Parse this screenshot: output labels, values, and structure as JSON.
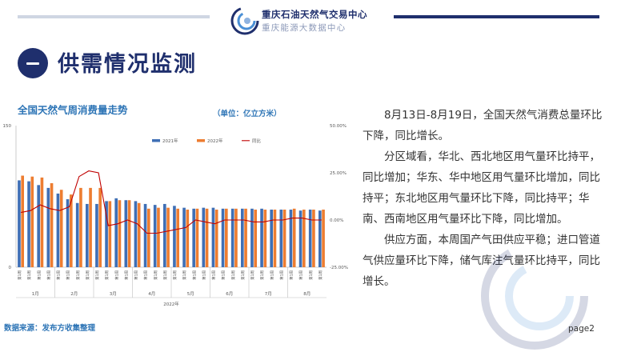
{
  "header": {
    "org_name": "重庆石油天然气交易中心",
    "org_sub": "重庆能源大数据中心",
    "brand_color": "#1f2f6d"
  },
  "section": {
    "badge_icon": "dash-icon",
    "title": "供需情况监测"
  },
  "chart_title": "全国天然气周消费量走势",
  "chart_unit": "（单位：亿立方米）",
  "source": "数据来源：发布方收集整理",
  "page": "page2",
  "paragraphs": [
    "8月13日-8月19日，全国天然气消费总量环比下降，同比增长。",
    "分区域看，华北、西北地区用气量环比持平，同比增加；华东、华中地区用气量环比增加，同比持平；东北地区用气量环比下降，同比持平；华南、西南地区用气量环比下降，同比增加。",
    "供应方面，本周国产气田供应平稳；进口管道气供应量环比下降，储气库注气量环比持平，同比增长。"
  ],
  "chart_data": {
    "type": "bar",
    "y_left_ticks": [
      "150",
      "0"
    ],
    "ylim_left": [
      0,
      150
    ],
    "y_right_ticks": [
      "50.00%",
      "25.00%",
      "0.00%",
      "-25.00%"
    ],
    "ylim_right": [
      -25,
      50
    ],
    "xlabel": "2022年",
    "week_label": "第1周",
    "months": [
      "1月",
      "2月",
      "3月",
      "4月",
      "5月",
      "6月",
      "7月",
      "8月"
    ],
    "month_week_counts": [
      4,
      4,
      4,
      4,
      4,
      4,
      4,
      4
    ],
    "legend_position": "top-center",
    "series": [
      {
        "name": "2021年",
        "color": "#3f6fb5",
        "values": [
          92,
          91,
          87,
          84,
          78,
          72,
          68,
          67,
          67,
          70,
          73,
          71,
          70,
          67,
          66,
          67,
          65,
          63,
          62,
          63,
          63,
          62,
          62,
          62,
          62,
          62,
          61,
          61,
          61,
          60,
          61,
          60
        ]
      },
      {
        "name": "2022年",
        "color": "#ed7d31",
        "values": [
          97,
          96,
          95,
          89,
          82,
          77,
          84,
          84,
          84,
          70,
          71,
          71,
          68,
          62,
          63,
          63,
          62,
          61,
          62,
          62,
          61,
          62,
          62,
          62,
          61,
          61,
          61,
          61,
          62,
          61,
          61,
          61
        ]
      },
      {
        "name": "同比",
        "color": "#c00000",
        "values": [
          4,
          5,
          8,
          6,
          5,
          7,
          23,
          26,
          25,
          -3,
          -2,
          0,
          -2,
          -7,
          -7,
          -6,
          -5,
          -4,
          0,
          -1,
          -2,
          0,
          0,
          0,
          -1,
          -1,
          0,
          0,
          1,
          1,
          0,
          0
        ]
      }
    ]
  }
}
